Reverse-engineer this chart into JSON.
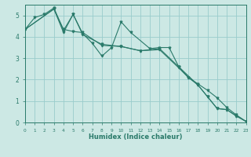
{
  "xlabel": "Humidex (Indice chaleur)",
  "bg_color": "#cce8e4",
  "grid_color": "#99cccc",
  "line_color": "#2a7a6a",
  "xlim": [
    0,
    23
  ],
  "ylim": [
    0,
    5.5
  ],
  "yticks": [
    0,
    1,
    2,
    3,
    4,
    5
  ],
  "xticks": [
    0,
    1,
    2,
    3,
    4,
    5,
    6,
    7,
    8,
    9,
    10,
    11,
    12,
    13,
    14,
    15,
    16,
    17,
    18,
    19,
    20,
    21,
    22,
    23
  ],
  "line_jagged_x": [
    0,
    1,
    2,
    3,
    4,
    5,
    6,
    7,
    8,
    9,
    10,
    11,
    13,
    14,
    15,
    16,
    18,
    19,
    20,
    21,
    22,
    23
  ],
  "line_jagged_y": [
    4.35,
    4.9,
    5.05,
    5.35,
    4.3,
    5.05,
    4.15,
    3.7,
    3.1,
    3.5,
    4.7,
    4.2,
    3.45,
    3.5,
    3.5,
    2.6,
    1.75,
    1.2,
    0.65,
    0.6,
    0.3,
    0.05
  ],
  "line_smooth1_x": [
    0,
    3,
    4,
    5,
    6,
    8,
    10,
    12,
    14,
    16,
    17,
    18,
    19,
    20,
    21,
    22,
    23
  ],
  "line_smooth1_y": [
    4.35,
    5.3,
    4.35,
    4.25,
    4.2,
    3.6,
    3.55,
    3.35,
    3.4,
    2.55,
    2.1,
    1.8,
    1.5,
    1.15,
    0.7,
    0.35,
    0.05
  ],
  "line_smooth2_x": [
    0,
    3,
    4,
    5,
    6,
    8,
    10,
    12,
    14,
    16,
    17,
    18,
    19,
    20,
    21,
    22,
    23
  ],
  "line_smooth2_y": [
    4.35,
    5.3,
    4.2,
    5.05,
    4.1,
    3.65,
    3.55,
    3.35,
    3.45,
    2.6,
    2.1,
    1.75,
    1.2,
    0.65,
    0.6,
    0.3,
    0.05
  ]
}
